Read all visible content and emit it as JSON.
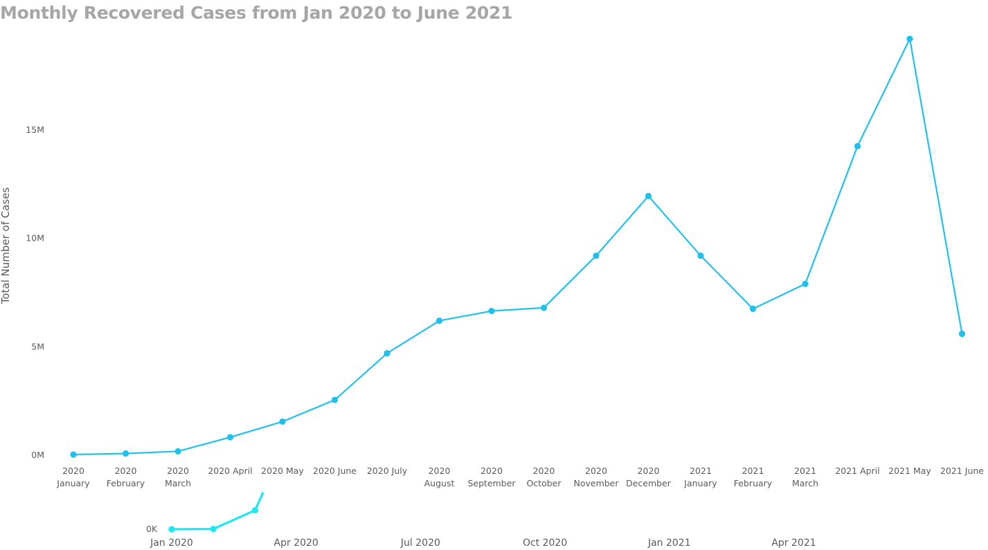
{
  "chart_data": {
    "type": "line",
    "title": "Monthly Recovered Cases from Jan 2020 to June 2021",
    "xlabel": "",
    "ylabel": "Total Number of Cases",
    "categories": [
      [
        "2020",
        "January"
      ],
      [
        "2020",
        "February"
      ],
      [
        "2020",
        "March"
      ],
      [
        "2020 April"
      ],
      [
        "2020 May"
      ],
      [
        "2020 June"
      ],
      [
        "2020 July"
      ],
      [
        "2020",
        "August"
      ],
      [
        "2020",
        "September"
      ],
      [
        "2020",
        "October"
      ],
      [
        "2020",
        "November"
      ],
      [
        "2020",
        "December"
      ],
      [
        "2021",
        "January"
      ],
      [
        "2021",
        "February"
      ],
      [
        "2021",
        "March"
      ],
      [
        "2021 April"
      ],
      [
        "2021 May"
      ],
      [
        "2021 June"
      ]
    ],
    "values": [
      0.03,
      0.08,
      0.18,
      0.83,
      1.55,
      2.55,
      4.7,
      6.2,
      6.65,
      6.8,
      9.2,
      11.95,
      9.2,
      6.75,
      7.9,
      14.25,
      19.2,
      5.6
    ],
    "value_unit": "M",
    "y_ticks": [
      0,
      5,
      10,
      15
    ],
    "y_tick_labels": [
      "0M",
      "5M",
      "10M",
      "15M"
    ],
    "ylim": [
      0,
      20
    ],
    "grid": false,
    "legend": "none",
    "line_color": "#1ec0ee",
    "navigator": {
      "zero_label": "0K",
      "ticks": [
        "Jan 2020",
        "Apr 2020",
        "Jul 2020",
        "Oct 2020",
        "Jan 2021",
        "Apr 2021"
      ],
      "visible_values": [
        0,
        0.15,
        9
      ],
      "line_color": "#1ae8f2"
    }
  }
}
